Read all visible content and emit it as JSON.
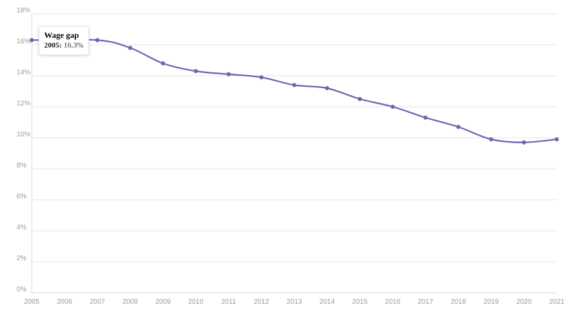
{
  "colors": {
    "line": "#7563b0",
    "grid": "#e6e6e6",
    "axis": "#d9d9d9",
    "tick": "#9a9a9a"
  },
  "tooltip": {
    "title": "Wage gap",
    "year": "2005:",
    "value": "16.3%"
  },
  "chart_data": {
    "type": "line",
    "title": "",
    "xlabel": "",
    "ylabel": "",
    "x": [
      2005,
      2006,
      2007,
      2008,
      2009,
      2010,
      2011,
      2012,
      2013,
      2014,
      2015,
      2016,
      2017,
      2018,
      2019,
      2020,
      2021
    ],
    "x_tick_labels": [
      "2005",
      "2006",
      "2007",
      "2008",
      "2009",
      "2010",
      "2011",
      "2012",
      "2013",
      "2014",
      "2015",
      "2016",
      "2017",
      "2018",
      "2019",
      "2020",
      "2021"
    ],
    "y_tick_labels": [
      "0%",
      "2%",
      "4%",
      "6%",
      "8%",
      "10%",
      "12%",
      "14%",
      "16%",
      "18%"
    ],
    "ylim": [
      0,
      18
    ],
    "grid": true,
    "series": [
      {
        "name": "Wage gap",
        "values": [
          16.3,
          null,
          16.3,
          15.8,
          14.8,
          14.3,
          14.1,
          13.9,
          13.4,
          13.2,
          12.5,
          12.0,
          11.3,
          10.7,
          9.9,
          9.7,
          9.9
        ]
      }
    ]
  }
}
